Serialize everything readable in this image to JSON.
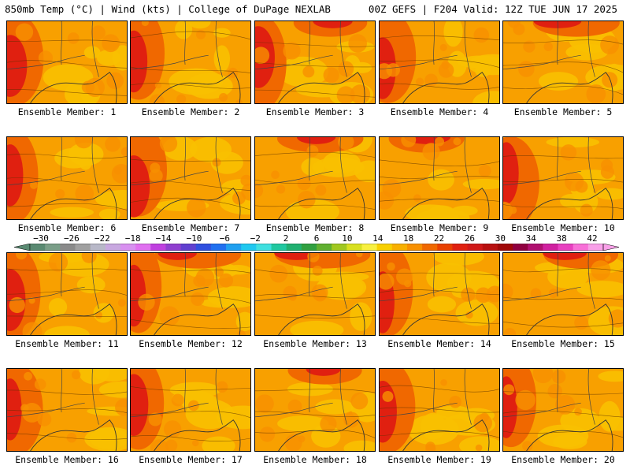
{
  "header": {
    "left": "850mb Temp (°C) | Wind (kts) | College of DuPage NEXLAB",
    "right": "00Z GEFS | F204 Valid: 12Z TUE JUN 17 2025"
  },
  "members": [
    {
      "label": "Ensemble Member: 1",
      "hot": "left"
    },
    {
      "label": "Ensemble Member: 2",
      "hot": "left"
    },
    {
      "label": "Ensemble Member: 3",
      "hot": "top-left"
    },
    {
      "label": "Ensemble Member: 4",
      "hot": "left"
    },
    {
      "label": "Ensemble Member: 5",
      "hot": "top"
    },
    {
      "label": "Ensemble Member: 6",
      "hot": "left"
    },
    {
      "label": "Ensemble Member: 7",
      "hot": "left"
    },
    {
      "label": "Ensemble Member: 8",
      "hot": "top"
    },
    {
      "label": "Ensemble Member: 9",
      "hot": "top"
    },
    {
      "label": "Ensemble Member: 10",
      "hot": "left"
    },
    {
      "label": "Ensemble Member: 11",
      "hot": "left"
    },
    {
      "label": "Ensemble Member: 12",
      "hot": "top-left"
    },
    {
      "label": "Ensemble Member: 13",
      "hot": "top"
    },
    {
      "label": "Ensemble Member: 14",
      "hot": "left"
    },
    {
      "label": "Ensemble Member: 15",
      "hot": "top"
    },
    {
      "label": "Ensemble Member: 16",
      "hot": "left"
    },
    {
      "label": "Ensemble Member: 17",
      "hot": "left"
    },
    {
      "label": "Ensemble Member: 18",
      "hot": "top"
    },
    {
      "label": "Ensemble Member: 19",
      "hot": "left"
    },
    {
      "label": "Ensemble Member: 20",
      "hot": "left"
    }
  ],
  "colorbar": {
    "labels": [
      "−30",
      "−26",
      "−22",
      "−18",
      "−14",
      "−10",
      "−6",
      "−2",
      "2",
      "6",
      "10",
      "14",
      "18",
      "22",
      "26",
      "30",
      "34",
      "38",
      "42"
    ],
    "colors": [
      "#5a8a72",
      "#7a9e88",
      "#8a8a8a",
      "#a0a0a0",
      "#b8b8c8",
      "#c8a8e0",
      "#d890f0",
      "#e070f0",
      "#c040e0",
      "#9040d0",
      "#6040d0",
      "#3050e0",
      "#2070f0",
      "#20a0f0",
      "#20c8f0",
      "#40e0e0",
      "#20c8a0",
      "#20b070",
      "#30a040",
      "#60b030",
      "#a0c820",
      "#d8e020",
      "#f8f040",
      "#f8d000",
      "#f8b000",
      "#f89000",
      "#f06800",
      "#e84000",
      "#e02010",
      "#d01818",
      "#b81010",
      "#a00808",
      "#900040",
      "#b01070",
      "#d020a0",
      "#e840c0",
      "#f870d8",
      "#f8a0e8"
    ]
  }
}
